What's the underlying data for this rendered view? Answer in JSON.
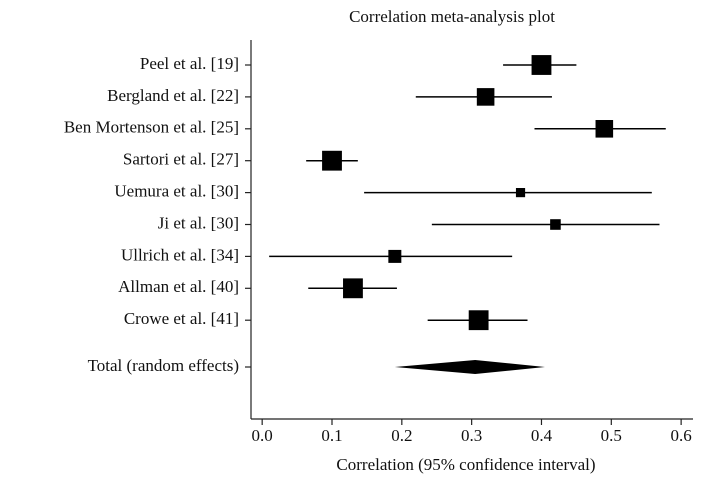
{
  "chart_data": {
    "type": "forest",
    "title": "Correlation meta-analysis plot",
    "x_label": "Correlation (95% confidence interval)",
    "categories": [
      "Peel et al. [19]",
      "Bergland et al. [22]",
      "Ben Mortenson et al. [25]",
      "Sartori et al. [27]",
      "Uemura et al. [30]",
      "Ji et al. [30]",
      "Ullrich et al. [34]",
      "Allman et al. [40]",
      "Crowe et al. [41]"
    ],
    "values": [
      0.4,
      0.32,
      0.49,
      0.1,
      0.37,
      0.42,
      0.19,
      0.13,
      0.31
    ],
    "lower": [
      0.345,
      0.22,
      0.39,
      0.063,
      0.146,
      0.243,
      0.01,
      0.066,
      0.237
    ],
    "upper": [
      0.45,
      0.415,
      0.578,
      0.137,
      0.558,
      0.569,
      0.358,
      0.193,
      0.38
    ],
    "weights": [
      14,
      11,
      11,
      14,
      3,
      4,
      6,
      14,
      14
    ],
    "total": {
      "label": "Total (random effects)",
      "value": 0.305,
      "lower": 0.19,
      "upper": 0.405
    },
    "color": "#000000",
    "xlim": [
      -0.016,
      0.617
    ],
    "xticks": [
      {
        "value": 0,
        "label": "0.0"
      },
      0.1,
      0.2,
      0.3,
      0.4,
      0.5,
      0.6
    ]
  }
}
